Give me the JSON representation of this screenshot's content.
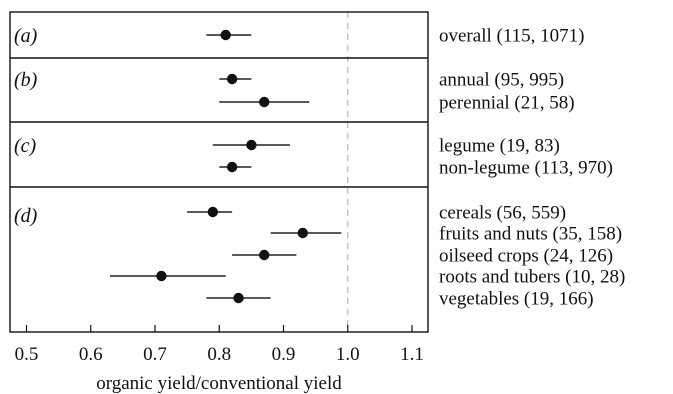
{
  "chart_data": {
    "type": "scatter",
    "style": "forest plot: point estimate with confidence interval per row",
    "xlabel": "organic yield/conventional yield",
    "xlim": [
      0.5,
      1.1
    ],
    "xticks": [
      "0.5",
      "0.6",
      "0.7",
      "0.8",
      "0.9",
      "1.0",
      "1.1"
    ],
    "reference_x": 1.0,
    "panels": [
      {
        "id": "(a)",
        "rows": [
          {
            "label": "overall (115, 1071)",
            "estimate": 0.81,
            "lower": 0.78,
            "upper": 0.85
          }
        ]
      },
      {
        "id": "(b)",
        "rows": [
          {
            "label": "annual (95, 995)",
            "estimate": 0.82,
            "lower": 0.8,
            "upper": 0.85
          },
          {
            "label": "perennial (21, 58)",
            "estimate": 0.87,
            "lower": 0.8,
            "upper": 0.94
          }
        ]
      },
      {
        "id": "(c)",
        "rows": [
          {
            "label": "legume (19, 83)",
            "estimate": 0.85,
            "lower": 0.79,
            "upper": 0.91
          },
          {
            "label": "non-legume (113, 970)",
            "estimate": 0.82,
            "lower": 0.8,
            "upper": 0.85
          }
        ]
      },
      {
        "id": "(d)",
        "rows": [
          {
            "label": "cereals (56, 559)",
            "estimate": 0.79,
            "lower": 0.75,
            "upper": 0.82
          },
          {
            "label": "fruits and nuts (35, 158)",
            "estimate": 0.93,
            "lower": 0.88,
            "upper": 0.99
          },
          {
            "label": "oilseed crops (24, 126)",
            "estimate": 0.87,
            "lower": 0.82,
            "upper": 0.92
          },
          {
            "label": "roots and tubers (10, 28)",
            "estimate": 0.71,
            "lower": 0.63,
            "upper": 0.81
          },
          {
            "label": "vegetables (19, 166)",
            "estimate": 0.83,
            "lower": 0.78,
            "upper": 0.88
          }
        ]
      }
    ],
    "colors": {
      "points": "#111111",
      "reference_line": "#bbbbbb"
    }
  }
}
